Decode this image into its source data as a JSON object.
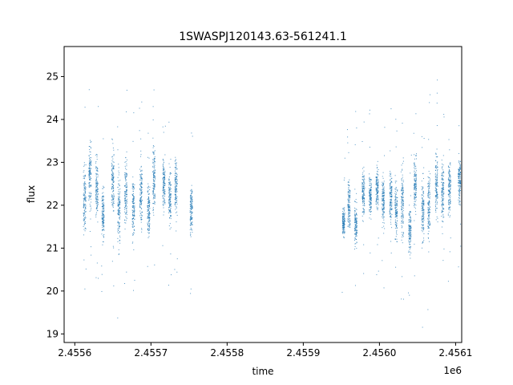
{
  "chart_data": {
    "type": "scatter",
    "title": "1SWASPJ120143.63-561241.1",
    "xlabel": "time",
    "ylabel": "flux",
    "x_offset_label": "1e6",
    "xlim": [
      2455586,
      2456108
    ],
    "ylim": [
      18.8,
      25.7
    ],
    "x_ticks": [
      2455600,
      2455700,
      2455800,
      2455900,
      2456000,
      2456100
    ],
    "x_tick_labels": [
      "2.4556",
      "2.4557",
      "2.4558",
      "2.4559",
      "2.4560",
      "2.4561"
    ],
    "y_ticks": [
      19,
      20,
      21,
      22,
      23,
      24,
      25
    ],
    "y_tick_labels": [
      "19",
      "20",
      "21",
      "22",
      "23",
      "24",
      "25"
    ],
    "grid": false,
    "marker_color": "#1f77b4",
    "series": [
      {
        "observing_seasons": [
          {
            "x_range": [
              2455613,
              2455755
            ],
            "nights": [
              {
                "x": 2455613,
                "flux_center": 22.1,
                "flux_low": 20.9,
                "flux_high": 23.6
              },
              {
                "x": 2455620,
                "flux_center": 22.7,
                "flux_low": 21.6,
                "flux_high": 24.3
              },
              {
                "x": 2455629,
                "flux_center": 22.3,
                "flux_low": 21.0,
                "flux_high": 23.4
              },
              {
                "x": 2455637,
                "flux_center": 21.8,
                "flux_low": 20.9,
                "flux_high": 23.0
              },
              {
                "x": 2455650,
                "flux_center": 22.6,
                "flux_low": 21.2,
                "flux_high": 23.6
              },
              {
                "x": 2455658,
                "flux_center": 21.9,
                "flux_low": 19.8,
                "flux_high": 23.0
              },
              {
                "x": 2455667,
                "flux_center": 22.3,
                "flux_low": 20.9,
                "flux_high": 23.5
              },
              {
                "x": 2455677,
                "flux_center": 22.0,
                "flux_low": 20.8,
                "flux_high": 23.1
              },
              {
                "x": 2455687,
                "flux_center": 22.2,
                "flux_low": 20.9,
                "flux_high": 23.4
              },
              {
                "x": 2455697,
                "flux_center": 21.9,
                "flux_low": 20.8,
                "flux_high": 23.0
              },
              {
                "x": 2455704,
                "flux_center": 22.6,
                "flux_low": 21.2,
                "flux_high": 23.9
              },
              {
                "x": 2455717,
                "flux_center": 22.5,
                "flux_low": 21.4,
                "flux_high": 23.3
              },
              {
                "x": 2455725,
                "flux_center": 22.2,
                "flux_low": 21.2,
                "flux_high": 23.6
              },
              {
                "x": 2455733,
                "flux_center": 22.4,
                "flux_low": 21.4,
                "flux_high": 23.5
              },
              {
                "x": 2455753,
                "flux_center": 21.9,
                "flux_low": 20.9,
                "flux_high": 22.8
              }
            ]
          },
          {
            "x_range": [
              2455953,
              2456105
            ],
            "nights": [
              {
                "x": 2455953,
                "flux_center": 21.6,
                "flux_low": 21.1,
                "flux_high": 22.1
              },
              {
                "x": 2455960,
                "flux_center": 22.0,
                "flux_low": 21.2,
                "flux_high": 23.1
              },
              {
                "x": 2455969,
                "flux_center": 21.6,
                "flux_low": 20.9,
                "flux_high": 23.0
              },
              {
                "x": 2455979,
                "flux_center": 22.3,
                "flux_low": 21.5,
                "flux_high": 23.3
              },
              {
                "x": 2455988,
                "flux_center": 22.2,
                "flux_low": 21.4,
                "flux_high": 23.2
              },
              {
                "x": 2455997,
                "flux_center": 22.4,
                "flux_low": 21.4,
                "flux_high": 23.2
              },
              {
                "x": 2456005,
                "flux_center": 22.1,
                "flux_low": 21.0,
                "flux_high": 23.0
              },
              {
                "x": 2456015,
                "flux_center": 22.2,
                "flux_low": 21.2,
                "flux_high": 23.1
              },
              {
                "x": 2456022,
                "flux_center": 21.9,
                "flux_low": 20.6,
                "flux_high": 23.1
              },
              {
                "x": 2456030,
                "flux_center": 22.1,
                "flux_low": 20.9,
                "flux_high": 23.6
              },
              {
                "x": 2456040,
                "flux_center": 21.4,
                "flux_low": 20.6,
                "flux_high": 22.3
              },
              {
                "x": 2456047,
                "flux_center": 22.5,
                "flux_low": 21.4,
                "flux_high": 23.6
              },
              {
                "x": 2456057,
                "flux_center": 21.9,
                "flux_low": 20.3,
                "flux_high": 23.2
              },
              {
                "x": 2456065,
                "flux_center": 22.0,
                "flux_low": 20.6,
                "flux_high": 23.4
              },
              {
                "x": 2456075,
                "flux_center": 22.5,
                "flux_low": 21.4,
                "flux_high": 23.8
              },
              {
                "x": 2456083,
                "flux_center": 22.3,
                "flux_low": 21.3,
                "flux_high": 23.7
              },
              {
                "x": 2456092,
                "flux_center": 22.4,
                "flux_low": 21.4,
                "flux_high": 23.4
              },
              {
                "x": 2456105,
                "flux_center": 22.6,
                "flux_low": 21.6,
                "flux_high": 23.4
              }
            ]
          }
        ]
      }
    ]
  }
}
